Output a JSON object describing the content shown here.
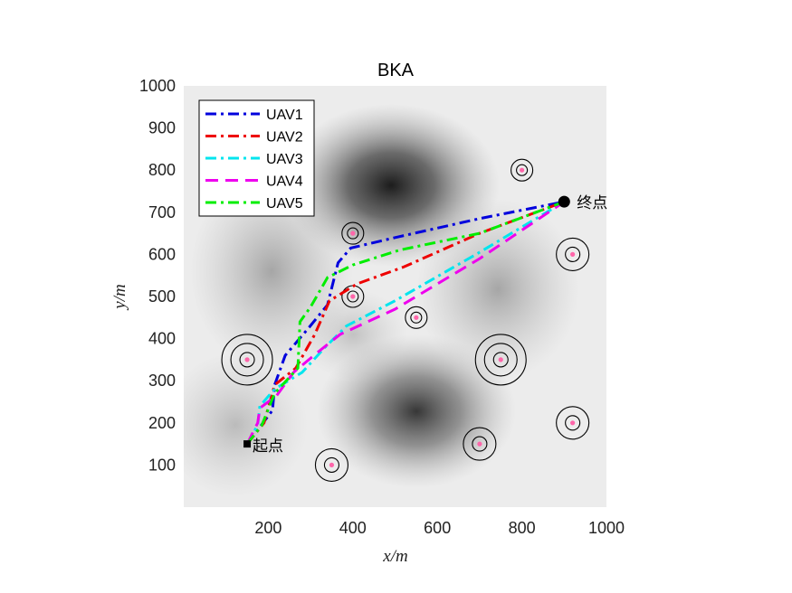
{
  "chart_data": {
    "type": "line",
    "title": "BKA",
    "xlabel": "x/m",
    "ylabel": "y/m",
    "xlim": [
      0,
      1000
    ],
    "ylim": [
      0,
      1000
    ],
    "xticks": [
      "200",
      "400",
      "600",
      "800",
      "1000"
    ],
    "yticks": [
      "100",
      "200",
      "300",
      "400",
      "500",
      "600",
      "700",
      "800",
      "900",
      "1000"
    ],
    "background": "grayscale terrain map",
    "legend_position": "top-left",
    "start": {
      "label": "起点",
      "x": 150,
      "y": 150
    },
    "goal": {
      "label": "终点",
      "x": 900,
      "y": 725
    },
    "series": [
      {
        "name": "UAV1",
        "color": "#0000dd",
        "dash": "dash-dot",
        "points": [
          [
            150,
            150
          ],
          [
            210,
            230
          ],
          [
            215,
            290
          ],
          [
            240,
            360
          ],
          [
            295,
            425
          ],
          [
            340,
            480
          ],
          [
            355,
            540
          ],
          [
            365,
            580
          ],
          [
            395,
            615
          ],
          [
            500,
            640
          ],
          [
            700,
            685
          ],
          [
            900,
            725
          ]
        ]
      },
      {
        "name": "UAV2",
        "color": "#ee0000",
        "dash": "dash-dot",
        "points": [
          [
            150,
            150
          ],
          [
            190,
            200
          ],
          [
            215,
            290
          ],
          [
            265,
            330
          ],
          [
            310,
            410
          ],
          [
            345,
            490
          ],
          [
            410,
            530
          ],
          [
            520,
            570
          ],
          [
            700,
            650
          ],
          [
            900,
            725
          ]
        ]
      },
      {
        "name": "UAV3",
        "color": "#00e5ee",
        "dash": "dash-dot",
        "points": [
          [
            150,
            150
          ],
          [
            175,
            195
          ],
          [
            180,
            240
          ],
          [
            215,
            280
          ],
          [
            280,
            320
          ],
          [
            335,
            380
          ],
          [
            385,
            430
          ],
          [
            500,
            490
          ],
          [
            700,
            605
          ],
          [
            900,
            725
          ]
        ]
      },
      {
        "name": "UAV4",
        "color": "#ee00ee",
        "dash": "dashed",
        "points": [
          [
            150,
            150
          ],
          [
            175,
            200
          ],
          [
            180,
            235
          ],
          [
            220,
            265
          ],
          [
            260,
            320
          ],
          [
            320,
            370
          ],
          [
            370,
            410
          ],
          [
            500,
            470
          ],
          [
            700,
            590
          ],
          [
            900,
            725
          ]
        ]
      },
      {
        "name": "UAV5",
        "color": "#00ee00",
        "dash": "dash-dot",
        "points": [
          [
            150,
            150
          ],
          [
            185,
            195
          ],
          [
            215,
            270
          ],
          [
            270,
            330
          ],
          [
            275,
            440
          ],
          [
            300,
            475
          ],
          [
            340,
            545
          ],
          [
            400,
            575
          ],
          [
            510,
            610
          ],
          [
            700,
            650
          ],
          [
            900,
            725
          ]
        ]
      }
    ],
    "threats": [
      {
        "x": 150,
        "y": 350,
        "rings": 3
      },
      {
        "x": 350,
        "y": 100,
        "rings": 2
      },
      {
        "x": 400,
        "y": 650,
        "rings": 1
      },
      {
        "x": 400,
        "y": 500,
        "rings": 1
      },
      {
        "x": 550,
        "y": 450,
        "rings": 1
      },
      {
        "x": 750,
        "y": 350,
        "rings": 3
      },
      {
        "x": 700,
        "y": 150,
        "rings": 2
      },
      {
        "x": 800,
        "y": 800,
        "rings": 1
      },
      {
        "x": 920,
        "y": 600,
        "rings": 2
      },
      {
        "x": 920,
        "y": 200,
        "rings": 2
      }
    ]
  }
}
